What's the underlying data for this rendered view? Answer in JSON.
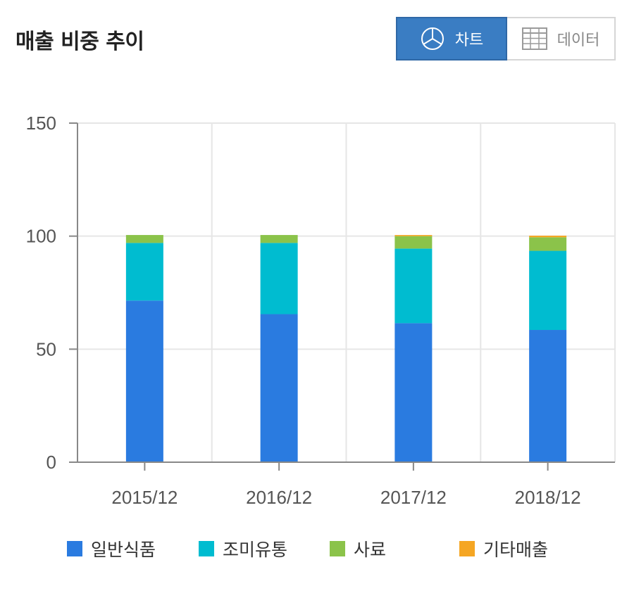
{
  "header": {
    "title": "매출 비중 추이",
    "chart_tab_label": "차트",
    "data_tab_label": "데이터",
    "chart_tab_icon": "pie-chart-icon",
    "data_tab_icon": "table-grid-icon"
  },
  "colors": {
    "accent": "#3a7dc3",
    "general_food": "#2a7be0",
    "seasoning": "#00bcd0",
    "feed": "#8bc34a",
    "other": "#f5a623"
  },
  "chart_data": {
    "type": "bar",
    "stacked": true,
    "categories": [
      "2015/12",
      "2016/12",
      "2017/12",
      "2018/12"
    ],
    "series": [
      {
        "name": "일반식품",
        "color": "#2a7be0",
        "values": [
          71.5,
          65.5,
          61.5,
          58.5
        ]
      },
      {
        "name": "조미유통",
        "color": "#00bcd0",
        "values": [
          25.5,
          31.5,
          33.0,
          35.0
        ]
      },
      {
        "name": "사료",
        "color": "#8bc34a",
        "values": [
          3.5,
          3.5,
          5.5,
          6.0
        ]
      },
      {
        "name": "기타매출",
        "color": "#f5a623",
        "values": [
          0.0,
          0.0,
          0.5,
          0.7
        ]
      }
    ],
    "ylim": [
      0,
      150
    ],
    "yticks": [
      0,
      50,
      100,
      150
    ],
    "grid": true,
    "legend": "bottom"
  }
}
